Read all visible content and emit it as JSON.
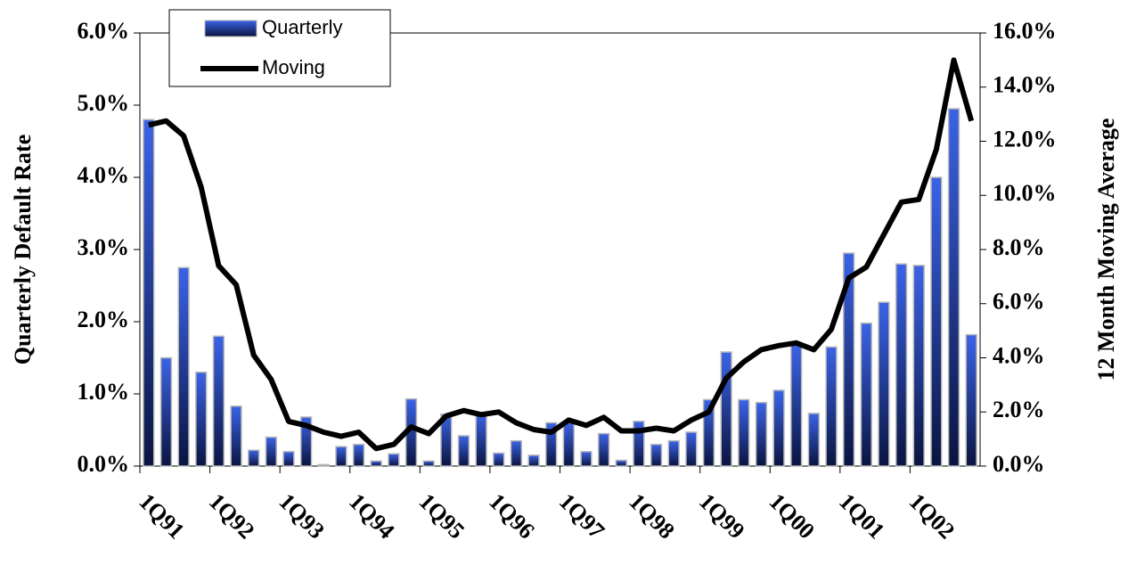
{
  "chart_data": {
    "type": "bar-line",
    "y_label": "Quarterly Default Rate",
    "y2_label": "12 Month Moving Average",
    "categories": [
      "1Q91",
      null,
      null,
      null,
      "1Q92",
      null,
      null,
      null,
      "1Q93",
      null,
      null,
      null,
      "1Q94",
      null,
      null,
      null,
      "1Q95",
      null,
      null,
      null,
      "1Q96",
      null,
      null,
      null,
      "1Q97",
      null,
      null,
      null,
      "1Q98",
      null,
      null,
      null,
      "1Q99",
      null,
      null,
      null,
      "1Q00",
      null,
      null,
      null,
      "1Q01",
      null,
      null,
      null,
      "1Q02",
      null,
      null,
      null
    ],
    "series": [
      {
        "name": "Quarterly",
        "type": "bar",
        "color": "#3b63e6",
        "axis": "y",
        "values": [
          4.8,
          1.5,
          2.75,
          1.3,
          1.8,
          0.83,
          0.22,
          0.4,
          0.2,
          0.68,
          0.02,
          0.27,
          0.3,
          0.07,
          0.17,
          0.93,
          0.07,
          0.72,
          0.42,
          0.72,
          0.18,
          0.35,
          0.15,
          0.6,
          0.6,
          0.2,
          0.45,
          0.08,
          0.62,
          0.3,
          0.35,
          0.47,
          0.92,
          1.58,
          0.92,
          0.88,
          1.05,
          1.68,
          0.73,
          1.65,
          2.95,
          1.98,
          2.27,
          2.8,
          2.78,
          4.0,
          4.95,
          1.82
        ]
      },
      {
        "name": "Moving",
        "type": "line",
        "color": "#000000",
        "axis": "y2",
        "values": [
          12.6,
          12.75,
          12.2,
          10.3,
          7.4,
          6.7,
          4.1,
          3.2,
          1.65,
          1.5,
          1.25,
          1.1,
          1.25,
          0.65,
          0.8,
          1.45,
          1.2,
          1.85,
          2.05,
          1.9,
          2.0,
          1.6,
          1.35,
          1.25,
          1.7,
          1.5,
          1.8,
          1.3,
          1.3,
          1.4,
          1.3,
          1.7,
          2.0,
          3.25,
          3.85,
          4.3,
          4.45,
          4.55,
          4.3,
          5.05,
          6.95,
          7.35,
          8.55,
          9.75,
          9.85,
          11.7,
          15.0,
          12.75
        ]
      }
    ],
    "ylim": [
      0,
      6
    ],
    "yticks": [
      {
        "value": 0,
        "label": "0.0%"
      },
      {
        "value": 1,
        "label": "1.0%"
      },
      {
        "value": 2,
        "label": "2.0%"
      },
      {
        "value": 3,
        "label": "3.0%"
      },
      {
        "value": 4,
        "label": "4.0%"
      },
      {
        "value": 5,
        "label": "5.0%"
      },
      {
        "value": 6,
        "label": "6.0%"
      }
    ],
    "y2lim": [
      0,
      16
    ],
    "y2ticks": [
      {
        "value": 0,
        "label": "0.0%"
      },
      {
        "value": 2,
        "label": "2.0%"
      },
      {
        "value": 4,
        "label": "4.0%"
      },
      {
        "value": 6,
        "label": "6.0%"
      },
      {
        "value": 8,
        "label": "8.0%"
      },
      {
        "value": 10,
        "label": "10.0%"
      },
      {
        "value": 12,
        "label": "12.0%"
      },
      {
        "value": 14,
        "label": "14.0%"
      },
      {
        "value": 16,
        "label": "16.0%"
      }
    ],
    "grid": false,
    "legend": "top-left"
  }
}
